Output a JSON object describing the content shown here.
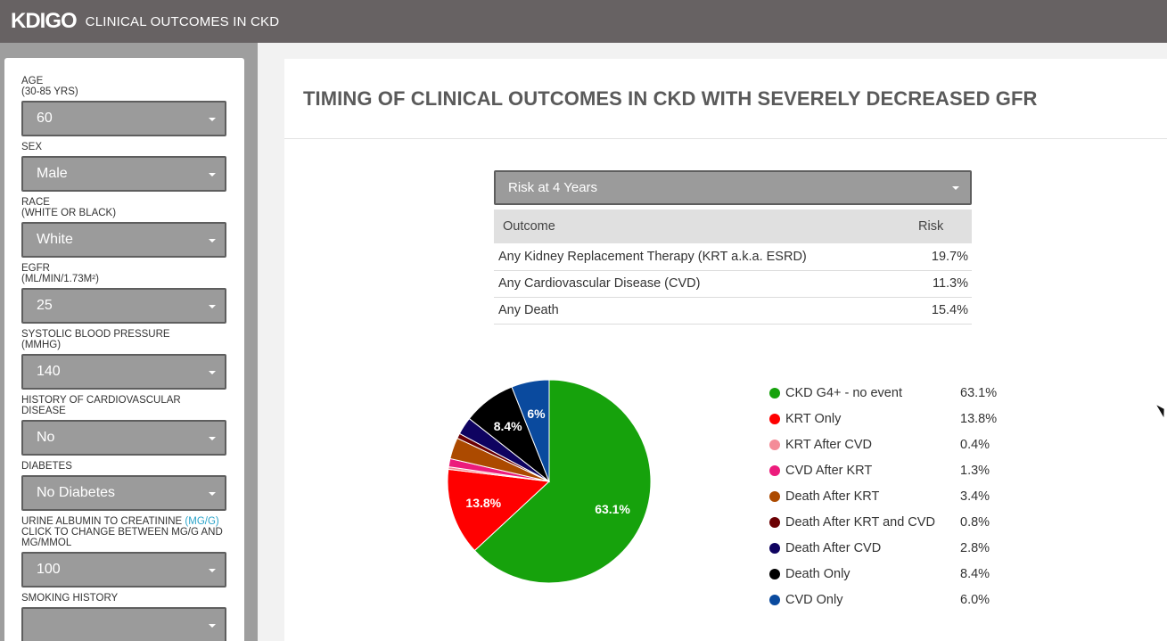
{
  "header": {
    "brand": "KDIGO",
    "title": "CLINICAL OUTCOMES IN CKD"
  },
  "sidebar": {
    "fields": [
      {
        "label": "AGE",
        "sublabel": "(30-85 YRS)",
        "value": "60"
      },
      {
        "label": "SEX",
        "value": "Male"
      },
      {
        "label": "RACE",
        "sublabel": "(WHITE OR BLACK)",
        "value": "White"
      },
      {
        "label": "EGFR",
        "sublabel": "(ML/MIN/1.73M²)",
        "value": "25"
      },
      {
        "label": "SYSTOLIC BLOOD PRESSURE",
        "sublabel": "(MMHG)",
        "value": "140"
      },
      {
        "label": "HISTORY OF CARDIOVASCULAR DISEASE",
        "value": "No"
      },
      {
        "label": "DIABETES",
        "value": "No Diabetes"
      },
      {
        "label": "URINE ALBUMIN TO CREATININE",
        "link": "(MG/G)",
        "sublabel": "CLICK TO CHANGE BETWEEN MG/G AND MG/MMOL",
        "value": "100"
      },
      {
        "label": "SMOKING HISTORY",
        "value": ""
      }
    ]
  },
  "main": {
    "title": "TIMING OF CLINICAL OUTCOMES IN CKD WITH SEVERELY DECREASED GFR",
    "risk_select": "Risk at 4 Years",
    "table": {
      "headers": [
        "Outcome",
        "Risk"
      ],
      "rows": [
        {
          "outcome": "Any Kidney Replacement Therapy (KRT a.k.a. ESRD)",
          "risk": "19.7%"
        },
        {
          "outcome": "Any Cardiovascular Disease (CVD)",
          "risk": "11.3%"
        },
        {
          "outcome": "Any Death",
          "risk": "15.4%"
        }
      ]
    }
  },
  "chart_data": {
    "type": "pie",
    "slices": [
      {
        "name": "CKD G4+ - no event",
        "value": 63.1,
        "label": "63.1%",
        "pie_label": "63.1%",
        "color": "#16a20c"
      },
      {
        "name": "KRT Only",
        "value": 13.8,
        "label": "13.8%",
        "pie_label": "13.8%",
        "color": "#ff0000"
      },
      {
        "name": "KRT After CVD",
        "value": 0.4,
        "label": "0.4%",
        "pie_label": "",
        "color": "#f48c98"
      },
      {
        "name": "CVD After KRT",
        "value": 1.3,
        "label": "1.3%",
        "pie_label": "",
        "color": "#ec1b7c"
      },
      {
        "name": "Death After KRT",
        "value": 3.4,
        "label": "3.4%",
        "pie_label": "",
        "color": "#ac4a00"
      },
      {
        "name": "Death After KRT and CVD",
        "value": 0.8,
        "label": "0.8%",
        "pie_label": "",
        "color": "#6b0003"
      },
      {
        "name": "Death After CVD",
        "value": 2.8,
        "label": "2.8%",
        "pie_label": "",
        "color": "#0f0360"
      },
      {
        "name": "Death Only",
        "value": 8.4,
        "label": "8.4%",
        "pie_label": "8.4%",
        "color": "#000000"
      },
      {
        "name": "CVD Only",
        "value": 6.0,
        "label": "6.0%",
        "pie_label": "6%",
        "color": "#0a4a9e"
      }
    ]
  }
}
